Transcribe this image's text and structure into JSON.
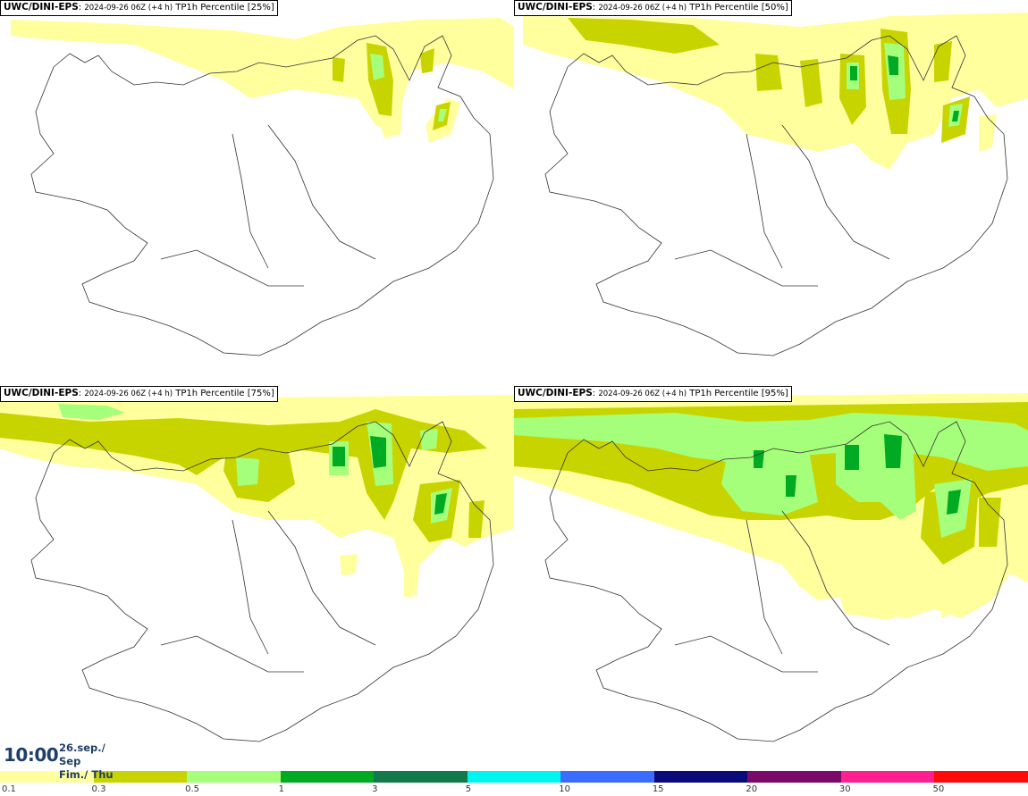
{
  "panels": [
    {
      "model": "UWC/DINI-EPS",
      "run": "2024-09-26 06Z (+4 h)",
      "field": "TP1h Percentile [25%]"
    },
    {
      "model": "UWC/DINI-EPS",
      "run": "2024-09-26 06Z (+4 h)",
      "field": "TP1h Percentile [50%]"
    },
    {
      "model": "UWC/DINI-EPS",
      "run": "2024-09-26 06Z (+4 h)",
      "field": "TP1h Percentile [75%]"
    },
    {
      "model": "UWC/DINI-EPS",
      "run": "2024-09-26 06Z (+4 h)",
      "field": "TP1h Percentile [95%]"
    }
  ],
  "valid_time": {
    "time": "10:00",
    "date_line1": "26.sep./ Sep",
    "date_line2": "Fim./ Thu"
  },
  "legend": {
    "colors": [
      "#ffff9e",
      "#c8d400",
      "#a6ff7a",
      "#00aa22",
      "#127a4a",
      "#00f5f0",
      "#3a6dff",
      "#0a0a7a",
      "#7a0a6a",
      "#ff1f8f",
      "#ff0a0a"
    ],
    "labels": [
      "0.1",
      "0.3",
      "0.5",
      "1",
      "3",
      "5",
      "10",
      "15",
      "20",
      "30",
      "50"
    ]
  },
  "palette": {
    "light_yellow": "#ffff9e",
    "olive": "#c8d400",
    "light_green": "#a6ff7a",
    "green": "#00aa22",
    "coast": "#333333"
  }
}
